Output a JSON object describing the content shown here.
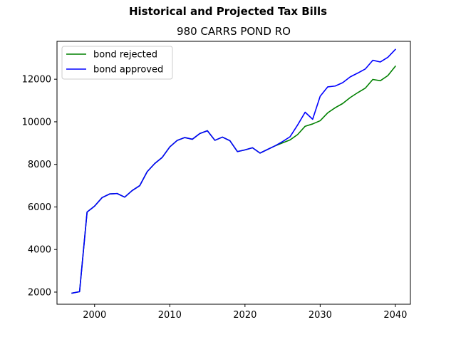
{
  "chart_data": {
    "type": "line",
    "title": "Historical and Projected Tax Bills",
    "subtitle": "980 CARRS POND RO",
    "xlabel": "",
    "ylabel": "",
    "xlim": [
      1995,
      2042
    ],
    "ylim": [
      1430,
      13780
    ],
    "xticks": [
      2000,
      2010,
      2020,
      2030,
      2040
    ],
    "yticks": [
      2000,
      4000,
      6000,
      8000,
      10000,
      12000
    ],
    "grid": false,
    "legend_position": "upper-left",
    "series": [
      {
        "name": "bond rejected",
        "color": "#008000",
        "x": [
          1997,
          1998,
          1999,
          2000,
          2001,
          2002,
          2003,
          2004,
          2005,
          2006,
          2007,
          2008,
          2009,
          2010,
          2011,
          2012,
          2013,
          2014,
          2015,
          2016,
          2017,
          2018,
          2019,
          2020,
          2021,
          2022,
          2023,
          2024,
          2025,
          2026,
          2027,
          2028,
          2029,
          2030,
          2031,
          2032,
          2033,
          2034,
          2035,
          2036,
          2037,
          2038,
          2039,
          2040
        ],
        "values": [
          1950,
          2020,
          5760,
          6040,
          6440,
          6610,
          6630,
          6460,
          6770,
          7000,
          7660,
          8040,
          8330,
          8820,
          9130,
          9260,
          9180,
          9450,
          9580,
          9130,
          9280,
          9110,
          8600,
          8680,
          8780,
          8530,
          8700,
          8870,
          9010,
          9150,
          9400,
          9790,
          9900,
          10050,
          10420,
          10660,
          10860,
          11140,
          11370,
          11580,
          11990,
          11930,
          12170,
          12610
        ]
      },
      {
        "name": "bond approved",
        "color": "#0000ff",
        "x": [
          1997,
          1998,
          1999,
          2000,
          2001,
          2002,
          2003,
          2004,
          2005,
          2006,
          2007,
          2008,
          2009,
          2010,
          2011,
          2012,
          2013,
          2014,
          2015,
          2016,
          2017,
          2018,
          2019,
          2020,
          2021,
          2022,
          2023,
          2024,
          2025,
          2026,
          2027,
          2028,
          2029,
          2030,
          2031,
          2032,
          2033,
          2034,
          2035,
          2036,
          2037,
          2038,
          2039,
          2040
        ],
        "values": [
          1950,
          2020,
          5760,
          6040,
          6440,
          6610,
          6630,
          6460,
          6770,
          7000,
          7660,
          8040,
          8330,
          8820,
          9130,
          9260,
          9180,
          9450,
          9580,
          9130,
          9280,
          9110,
          8600,
          8680,
          8780,
          8530,
          8700,
          8870,
          9070,
          9300,
          9850,
          10450,
          10120,
          11200,
          11640,
          11680,
          11840,
          12110,
          12290,
          12480,
          12890,
          12810,
          13030,
          13400
        ]
      }
    ]
  }
}
